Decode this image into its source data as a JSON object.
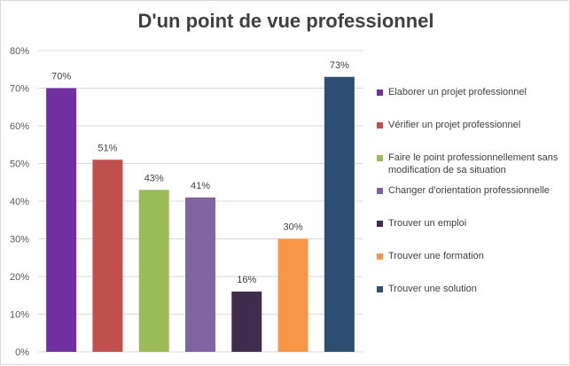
{
  "chart_data": {
    "type": "bar",
    "title": "D'un point de vue professionnel",
    "xlabel": "",
    "ylabel": "",
    "ylim": [
      0,
      80
    ],
    "yticks": [
      "0%",
      "10%",
      "20%",
      "30%",
      "40%",
      "50%",
      "60%",
      "70%",
      "80%"
    ],
    "grid": true,
    "legend_position": "right",
    "categories": [
      "Elaborer un projet professionnel",
      "Vérifier un projet professionnel",
      "Faire le point professionnellement sans modification de sa situation",
      "Changer d'orientation professionnelle",
      "Trouver un emploi",
      "Trouver une formation",
      "Trouver une solution"
    ],
    "values": [
      70,
      51,
      43,
      41,
      16,
      30,
      73
    ],
    "labels": [
      "70%",
      "51%",
      "43%",
      "41%",
      "16%",
      "30%",
      "73%"
    ],
    "colors": [
      "#7030a0",
      "#c0504d",
      "#9bbb59",
      "#8064a2",
      "#3f2d4e",
      "#f79646",
      "#2e4f74"
    ]
  }
}
